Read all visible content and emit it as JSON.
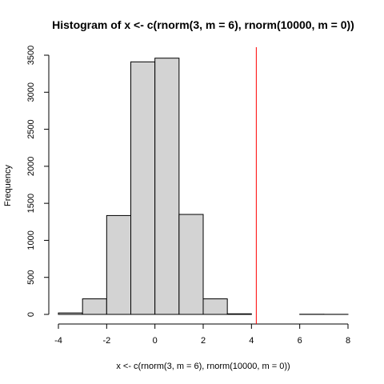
{
  "chart_data": {
    "type": "bar",
    "title": "Histogram of x <- c(rnorm(3, m = 6), rnorm(10000, m = 0))",
    "xlabel": "x <- c(rnorm(3, m = 6), rnorm(10000, m = 0))",
    "ylabel": "Frequency",
    "xlim": [
      -4,
      8
    ],
    "ylim": [
      0,
      3500
    ],
    "x_ticks": [
      -4,
      -2,
      0,
      2,
      4,
      6,
      8
    ],
    "y_ticks": [
      0,
      500,
      1000,
      1500,
      2000,
      2500,
      3000,
      3500
    ],
    "bins": [
      {
        "start": -4,
        "end": -3,
        "count": 20
      },
      {
        "start": -3,
        "end": -2,
        "count": 210
      },
      {
        "start": -2,
        "end": -1,
        "count": 1335
      },
      {
        "start": -1,
        "end": 0,
        "count": 3410
      },
      {
        "start": 0,
        "end": 1,
        "count": 3460
      },
      {
        "start": 1,
        "end": 2,
        "count": 1350
      },
      {
        "start": 2,
        "end": 3,
        "count": 210
      },
      {
        "start": 3,
        "end": 4,
        "count": 8
      },
      {
        "start": 4,
        "end": 5,
        "count": 0
      },
      {
        "start": 5,
        "end": 6,
        "count": 0
      },
      {
        "start": 6,
        "end": 7,
        "count": 2
      },
      {
        "start": 7,
        "end": 8,
        "count": 1
      }
    ],
    "bar_fill": "#d3d3d3",
    "bar_stroke": "#000000",
    "vline": {
      "x": 4.2,
      "color": "#ff0000"
    },
    "grid": false,
    "legend": "none"
  }
}
